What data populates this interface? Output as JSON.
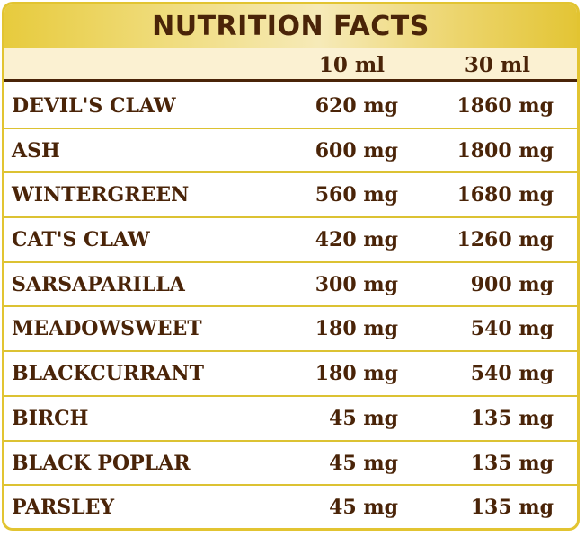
{
  "title": "NUTRITION FACTS",
  "columns": [
    "10 ml",
    "30 ml"
  ],
  "rows": [
    {
      "name": "DEVIL'S CLAW",
      "v10": "620 mg",
      "v30": "1860 mg"
    },
    {
      "name": "ASH",
      "v10": "600 mg",
      "v30": "1800 mg"
    },
    {
      "name": "WINTERGREEN",
      "v10": "560 mg",
      "v30": "1680 mg"
    },
    {
      "name": "CAT'S CLAW",
      "v10": "420 mg",
      "v30": "1260 mg"
    },
    {
      "name": "SARSAPARILLA",
      "v10": "300 mg",
      "v30": "900 mg"
    },
    {
      "name": "MEADOWSWEET",
      "v10": "180 mg",
      "v30": "540 mg"
    },
    {
      "name": "BLACKCURRANT",
      "v10": "180 mg",
      "v30": "540 mg"
    },
    {
      "name": "BIRCH",
      "v10": "45 mg",
      "v30": "135 mg"
    },
    {
      "name": "BLACK POPLAR",
      "v10": "45 mg",
      "v30": "135 mg"
    },
    {
      "name": "PARSLEY",
      "v10": "45 mg",
      "v30": "135 mg"
    }
  ],
  "colors": {
    "border": "#e2c431",
    "text": "#4a2408",
    "header_bg": "#fbf1d2"
  }
}
